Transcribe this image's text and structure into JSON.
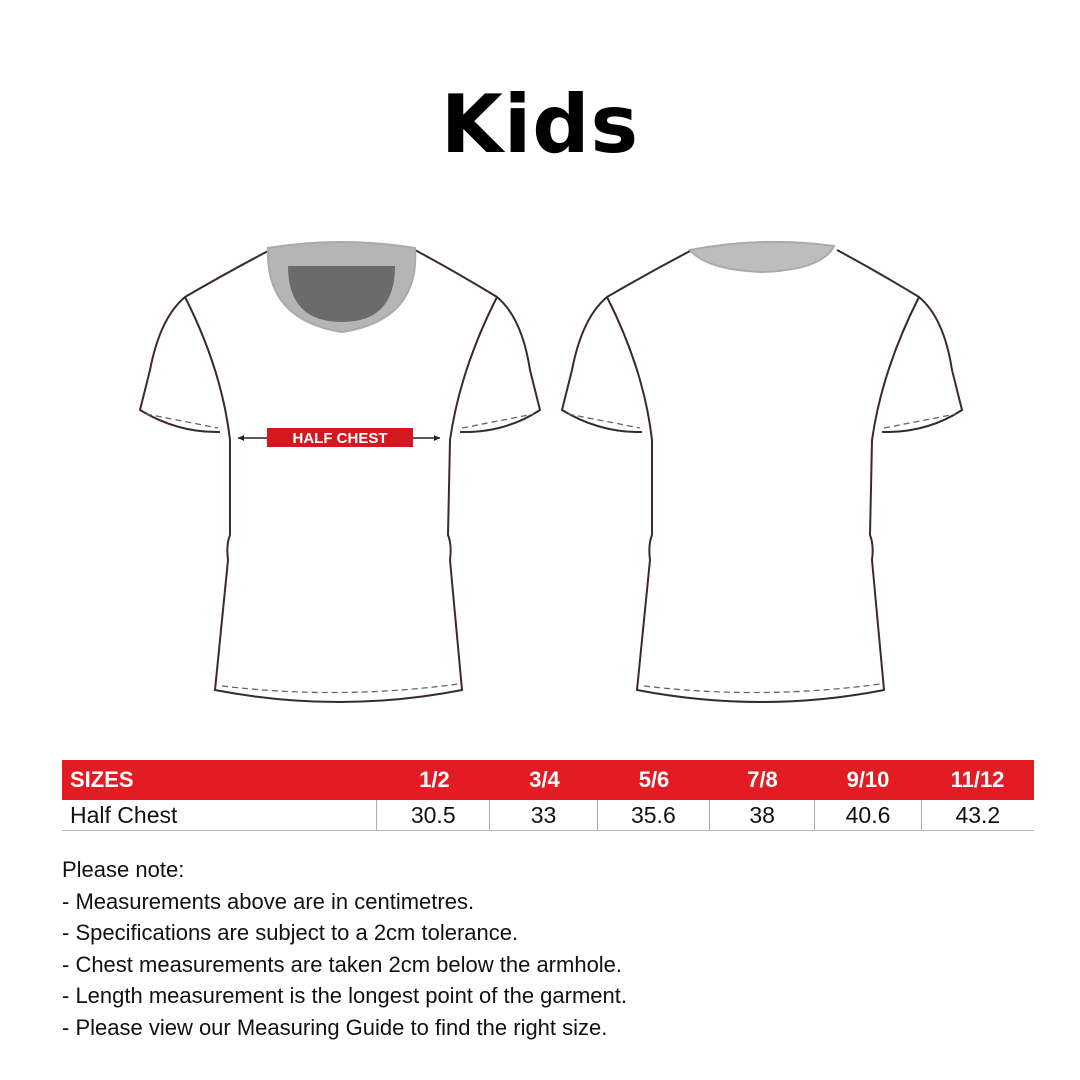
{
  "title": "Kids",
  "diagram": {
    "label": "HALF CHEST",
    "accent": "#e31b23"
  },
  "table": {
    "header": [
      "SIZES",
      "1/2",
      "3/4",
      "5/6",
      "7/8",
      "9/10",
      "11/12"
    ],
    "rows": [
      [
        "Half Chest",
        "30.5",
        "33",
        "35.6",
        "38",
        "40.6",
        "43.2"
      ]
    ]
  },
  "notes": {
    "heading": "Please note:",
    "items": [
      "- Measurements above are in centimetres.",
      "- Specifications are subject to a 2cm tolerance.",
      "- Chest measurements are taken 2cm below the armhole.",
      "- Length measurement is the longest point of the garment.",
      "- Please view our Measuring Guide to find the right size."
    ]
  }
}
